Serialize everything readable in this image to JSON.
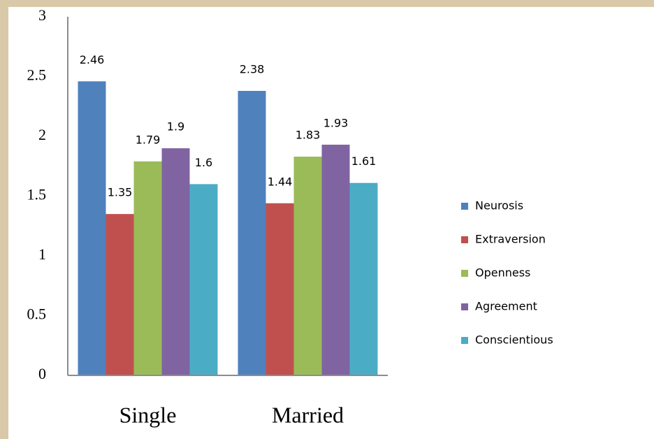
{
  "chart_data": {
    "type": "bar",
    "categories": [
      "Single",
      "Married"
    ],
    "series": [
      {
        "name": "Neurosis",
        "color": "#4f81bd",
        "values": [
          2.46,
          2.38
        ]
      },
      {
        "name": "Extraversion",
        "color": "#c0504d",
        "values": [
          1.35,
          1.44
        ]
      },
      {
        "name": "Openness",
        "color": "#9bbb59",
        "values": [
          1.79,
          1.83
        ]
      },
      {
        "name": "Agreement",
        "color": "#8064a2",
        "values": [
          1.9,
          1.93
        ]
      },
      {
        "name": "Conscientious",
        "color": "#4bacc6",
        "values": [
          1.6,
          1.61
        ]
      }
    ],
    "ylim": [
      0,
      3
    ],
    "yticks": [
      0,
      0.5,
      1,
      1.5,
      2,
      2.5,
      3
    ],
    "grid": false,
    "legend": "right"
  }
}
